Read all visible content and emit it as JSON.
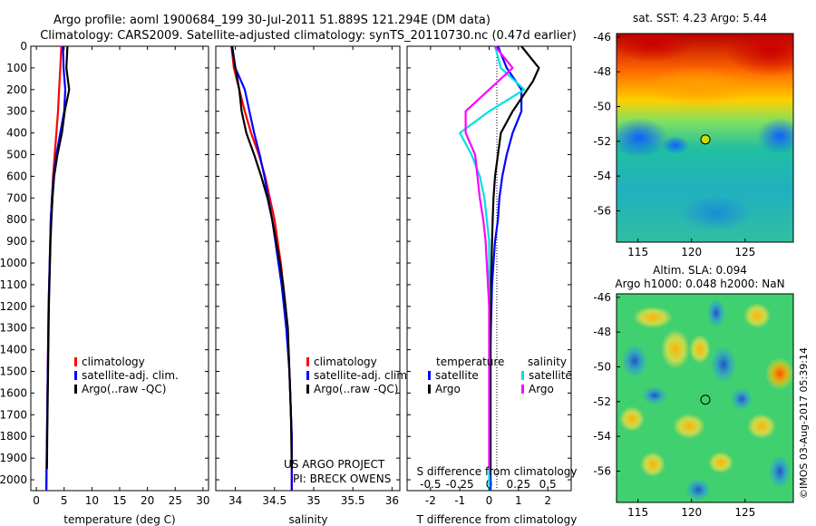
{
  "header": {
    "line1": "Argo profile: aoml 1900684_199 30-Jul-2011 51.889S 121.294E (DM data)",
    "line2": "Climatology: CARS2009. Satellite-adjusted climatology: synTS_20110730.nc (0.47d earlier)"
  },
  "colors": {
    "climatology": "#ff0000",
    "satellite": "#0000ff",
    "argo": "#000000",
    "salinity_sat": "#00e0e0",
    "salinity_argo": "#ff00ff"
  },
  "depth_ticks": [
    "0",
    "100",
    "200",
    "300",
    "400",
    "500",
    "600",
    "700",
    "800",
    "900",
    "1000",
    "1100",
    "1200",
    "1300",
    "1400",
    "1500",
    "1600",
    "1700",
    "1800",
    "1900",
    "2000"
  ],
  "legend": {
    "climatology": "climatology",
    "satellite": "satellite-adj. clim.",
    "argo": "Argo(..raw -QC)"
  },
  "project": {
    "line1": "US ARGO PROJECT",
    "line2": "PI: BRECK OWENS"
  },
  "diff_legend": {
    "temperature": "temperature",
    "salinity": "salinity",
    "satellite": "satellite",
    "argo": "Argo"
  },
  "maps": {
    "sst_title": "sat. SST: 4.23 Argo: 5.44",
    "sla_title1": "Altim. SLA: 0.094",
    "sla_title2": "Argo h1000: 0.048 h2000: NaN",
    "lat_ticks": [
      "-46",
      "-48",
      "-50",
      "-52",
      "-54",
      "-56"
    ],
    "lon_ticks": [
      "115",
      "120",
      "125"
    ],
    "float_lon": 121.294,
    "float_lat": -51.889
  },
  "credit": "©IMOS 03-Aug-2017 05:39:14",
  "chart_data": [
    {
      "type": "line",
      "xlabel": "temperature (deg C)",
      "xlim": [
        -1,
        31
      ],
      "ylim": [
        2050,
        0
      ],
      "xticks": [
        "0",
        "5",
        "10",
        "15",
        "20",
        "25",
        "30"
      ],
      "series": [
        {
          "key": "climatology",
          "x": [
            4.5,
            4.3,
            4.1,
            3.9,
            3.6,
            3.3,
            3.0,
            2.8,
            2.6,
            2.5,
            2.4,
            2.3,
            2.2,
            2.15,
            2.1,
            2.05,
            2.0,
            1.95,
            1.9,
            1.85,
            1.8
          ],
          "y": [
            0,
            100,
            200,
            300,
            400,
            500,
            600,
            700,
            800,
            900,
            1000,
            1100,
            1200,
            1300,
            1400,
            1500,
            1600,
            1700,
            1800,
            1900,
            2050
          ]
        },
        {
          "key": "satellite",
          "x": [
            4.8,
            4.9,
            5.2,
            5.0,
            4.3,
            3.6,
            3.1,
            2.8,
            2.6,
            2.5,
            2.4,
            2.3,
            2.2,
            2.15,
            2.1,
            2.05,
            2.0,
            1.95,
            1.9,
            1.85,
            1.8
          ],
          "y": [
            0,
            100,
            200,
            300,
            400,
            500,
            600,
            700,
            800,
            900,
            1000,
            1100,
            1200,
            1300,
            1400,
            1500,
            1600,
            1700,
            1800,
            1900,
            2050
          ]
        },
        {
          "key": "argo",
          "x": [
            5.6,
            5.4,
            5.9,
            5.1,
            4.6,
            3.8,
            3.2,
            2.9,
            2.7,
            2.55,
            2.45,
            2.35,
            2.25,
            2.2,
            2.15,
            2.1,
            2.05,
            2.0,
            1.95,
            1.9
          ],
          "y": [
            0,
            100,
            200,
            300,
            400,
            500,
            600,
            700,
            800,
            900,
            1000,
            1100,
            1200,
            1300,
            1400,
            1500,
            1600,
            1700,
            1800,
            1950
          ]
        }
      ]
    },
    {
      "type": "line",
      "xlabel": "salinity",
      "xlim": [
        33.75,
        36.1
      ],
      "ylim": [
        2050,
        0
      ],
      "xticks": [
        "34",
        "34.5",
        "35",
        "35.5",
        "36"
      ],
      "series": [
        {
          "key": "climatology",
          "x": [
            33.95,
            33.98,
            34.05,
            34.12,
            34.2,
            34.3,
            34.38,
            34.44,
            34.5,
            34.54,
            34.58,
            34.61,
            34.64,
            34.66,
            34.68,
            34.69,
            34.7,
            34.71,
            34.72,
            34.72,
            34.72
          ],
          "y": [
            0,
            100,
            200,
            300,
            400,
            500,
            600,
            700,
            800,
            900,
            1000,
            1100,
            1200,
            1300,
            1400,
            1500,
            1600,
            1700,
            1800,
            1900,
            2050
          ]
        },
        {
          "key": "satellite",
          "x": [
            33.95,
            34.0,
            34.12,
            34.18,
            34.24,
            34.31,
            34.37,
            34.42,
            34.47,
            34.51,
            34.55,
            34.59,
            34.62,
            34.65,
            34.67,
            34.69,
            34.7,
            34.71,
            34.72,
            34.72,
            34.72
          ],
          "y": [
            0,
            100,
            200,
            300,
            400,
            500,
            600,
            700,
            800,
            900,
            1000,
            1100,
            1200,
            1300,
            1400,
            1500,
            1600,
            1700,
            1800,
            1900,
            2050
          ]
        },
        {
          "key": "argo",
          "x": [
            33.96,
            34.0,
            34.05,
            34.08,
            34.14,
            34.24,
            34.33,
            34.41,
            34.47,
            34.52,
            34.57,
            34.61,
            34.64,
            34.67,
            34.68,
            34.69,
            34.7,
            34.71,
            34.72
          ],
          "y": [
            0,
            100,
            200,
            300,
            400,
            500,
            600,
            700,
            800,
            900,
            1000,
            1100,
            1200,
            1300,
            1400,
            1500,
            1600,
            1700,
            1950
          ]
        }
      ]
    },
    {
      "type": "line",
      "xlabel": "T difference from climatology",
      "title_top": "S difference from climatology",
      "xlim": [
        -2.8,
        2.8
      ],
      "ylim": [
        2050,
        0
      ],
      "xticks": [
        "-2",
        "-1",
        "0",
        "1",
        "2"
      ],
      "top_ticks": [
        "-0.5",
        "-0.25",
        "0",
        "0.25",
        "0.5"
      ],
      "series": [
        {
          "key": "t_satellite",
          "x": [
            0.3,
            0.6,
            1.1,
            1.1,
            0.8,
            0.6,
            0.45,
            0.35,
            0.3,
            0.2,
            0.15,
            0.1,
            0.08,
            0.06,
            0.05,
            0.05,
            0.05,
            0.05,
            0.05,
            0.05,
            0.05
          ],
          "y": [
            0,
            100,
            200,
            300,
            400,
            500,
            600,
            700,
            800,
            900,
            1000,
            1100,
            1200,
            1300,
            1400,
            1500,
            1600,
            1700,
            1800,
            1900,
            2050
          ]
        },
        {
          "key": "t_argo",
          "x": [
            1.1,
            1.7,
            1.5,
            0.8,
            0.4,
            0.3,
            0.2,
            0.15,
            0.12,
            0.1,
            0.08,
            0.06,
            0.05,
            0.04,
            0.04,
            0.04,
            0.04,
            0.04,
            0.04
          ],
          "y": [
            0,
            100,
            160,
            300,
            400,
            500,
            600,
            700,
            800,
            900,
            1000,
            1100,
            1200,
            1300,
            1400,
            1500,
            1600,
            1700,
            1950
          ]
        },
        {
          "key": "s_satellite",
          "x": [
            0.05,
            0.1,
            0.3,
            0.0,
            -0.25,
            -0.15,
            -0.08,
            -0.04,
            -0.02,
            0.0,
            0.0,
            0.0,
            0.0,
            0.0,
            0.0,
            0.0,
            0.0,
            0.0,
            0.0,
            0.0,
            0.0
          ],
          "y": [
            0,
            100,
            200,
            300,
            400,
            500,
            600,
            700,
            800,
            900,
            1000,
            1100,
            1200,
            1300,
            1400,
            1500,
            1600,
            1700,
            1800,
            1900,
            2050
          ]
        },
        {
          "key": "s_argo",
          "x": [
            0.05,
            0.2,
            0.0,
            -0.2,
            -0.2,
            -0.12,
            -0.1,
            -0.08,
            -0.05,
            -0.03,
            -0.02,
            -0.01,
            0.0,
            0.0,
            0.0,
            0.0,
            0.0,
            0.0,
            0.0
          ],
          "y": [
            0,
            100,
            200,
            300,
            400,
            500,
            600,
            700,
            800,
            900,
            1000,
            1100,
            1200,
            1300,
            1400,
            1500,
            1600,
            1700,
            1950
          ]
        }
      ]
    }
  ]
}
